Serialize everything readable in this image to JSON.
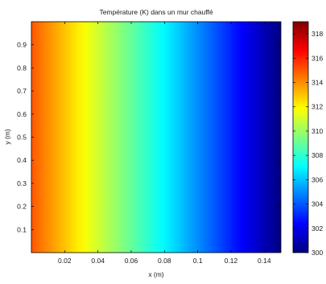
{
  "chart_data": {
    "type": "heatmap",
    "title": "Température (K) dans un mur chauffé",
    "xlabel": "x (m)",
    "ylabel": "y (m)",
    "xlim": [
      0,
      0.15
    ],
    "ylim": [
      0,
      1
    ],
    "x_ticks": [
      "0.02",
      "0.04",
      "0.06",
      "0.08",
      "0.1",
      "0.12",
      "0.14"
    ],
    "y_ticks": [
      "0.1",
      "0.2",
      "0.3",
      "0.4",
      "0.5",
      "0.6",
      "0.7",
      "0.8",
      "0.9"
    ],
    "colorbar": {
      "ticks": [
        "300",
        "302",
        "304",
        "306",
        "308",
        "310",
        "312",
        "314",
        "316",
        "318"
      ],
      "range": [
        300,
        319
      ],
      "colormap": "jet"
    },
    "field": {
      "varies_along": "x",
      "x": [
        0,
        0.15
      ],
      "values_K": [
        315,
        300
      ]
    }
  }
}
